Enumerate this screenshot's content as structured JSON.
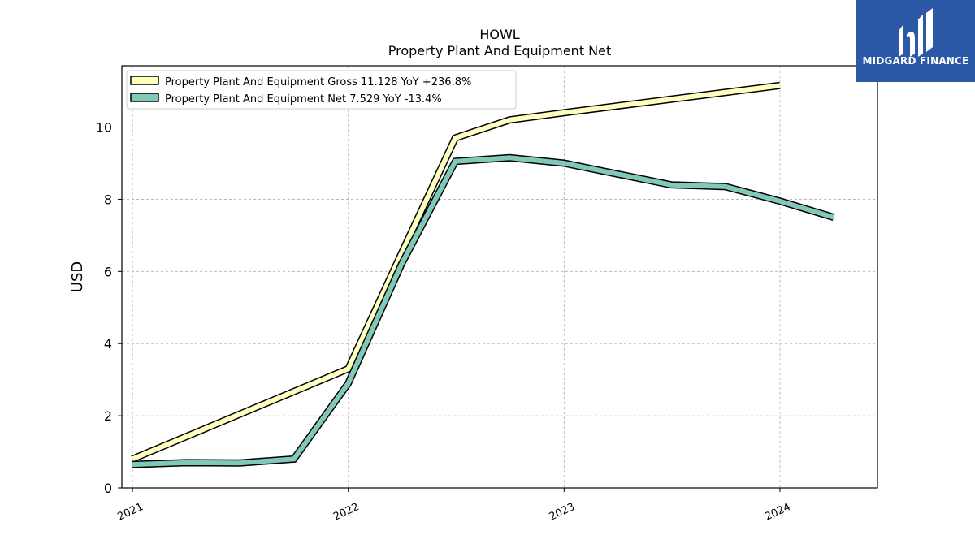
{
  "chart_data": {
    "type": "line",
    "title": "HOWL",
    "subtitle": "Property Plant And Equipment Net",
    "xlabel": "",
    "ylabel": "USD",
    "ylim": [
      0,
      11.7
    ],
    "yticks": [
      0,
      2,
      4,
      6,
      8,
      10
    ],
    "xticks": [
      "2021",
      "2022",
      "2023",
      "2024"
    ],
    "grid": true,
    "legend_position": "top-left",
    "series": [
      {
        "name": "Property Plant And Equipment Gross",
        "legend_label": "Property Plant And Equipment Gross  11.128 YoY +236.8%",
        "color": "#ffffc0",
        "x": [
          "2021-01-01",
          "2022-01-01",
          "2022-04-01",
          "2022-07-01",
          "2022-10-01",
          "2023-01-01",
          "2024-01-01"
        ],
        "values": [
          0.8,
          3.3,
          6.5,
          9.7,
          10.2,
          10.4,
          11.15
        ]
      },
      {
        "name": "Property Plant And Equipment Net",
        "legend_label": "Property Plant And Equipment Net  7.529 YoY -13.4%",
        "color": "#80c8b8",
        "x": [
          "2021-01-01",
          "2021-04-01",
          "2021-07-01",
          "2021-10-01",
          "2022-01-01",
          "2022-04-01",
          "2022-07-01",
          "2022-10-01",
          "2023-01-01",
          "2023-04-01",
          "2023-07-01",
          "2023-10-01",
          "2024-01-01",
          "2024-04-01"
        ],
        "values": [
          0.65,
          0.7,
          0.69,
          0.8,
          2.9,
          6.2,
          9.05,
          9.15,
          9.0,
          8.7,
          8.4,
          8.35,
          7.95,
          7.5
        ]
      }
    ]
  },
  "logo": {
    "text": "MIDGARD FINANCE"
  }
}
